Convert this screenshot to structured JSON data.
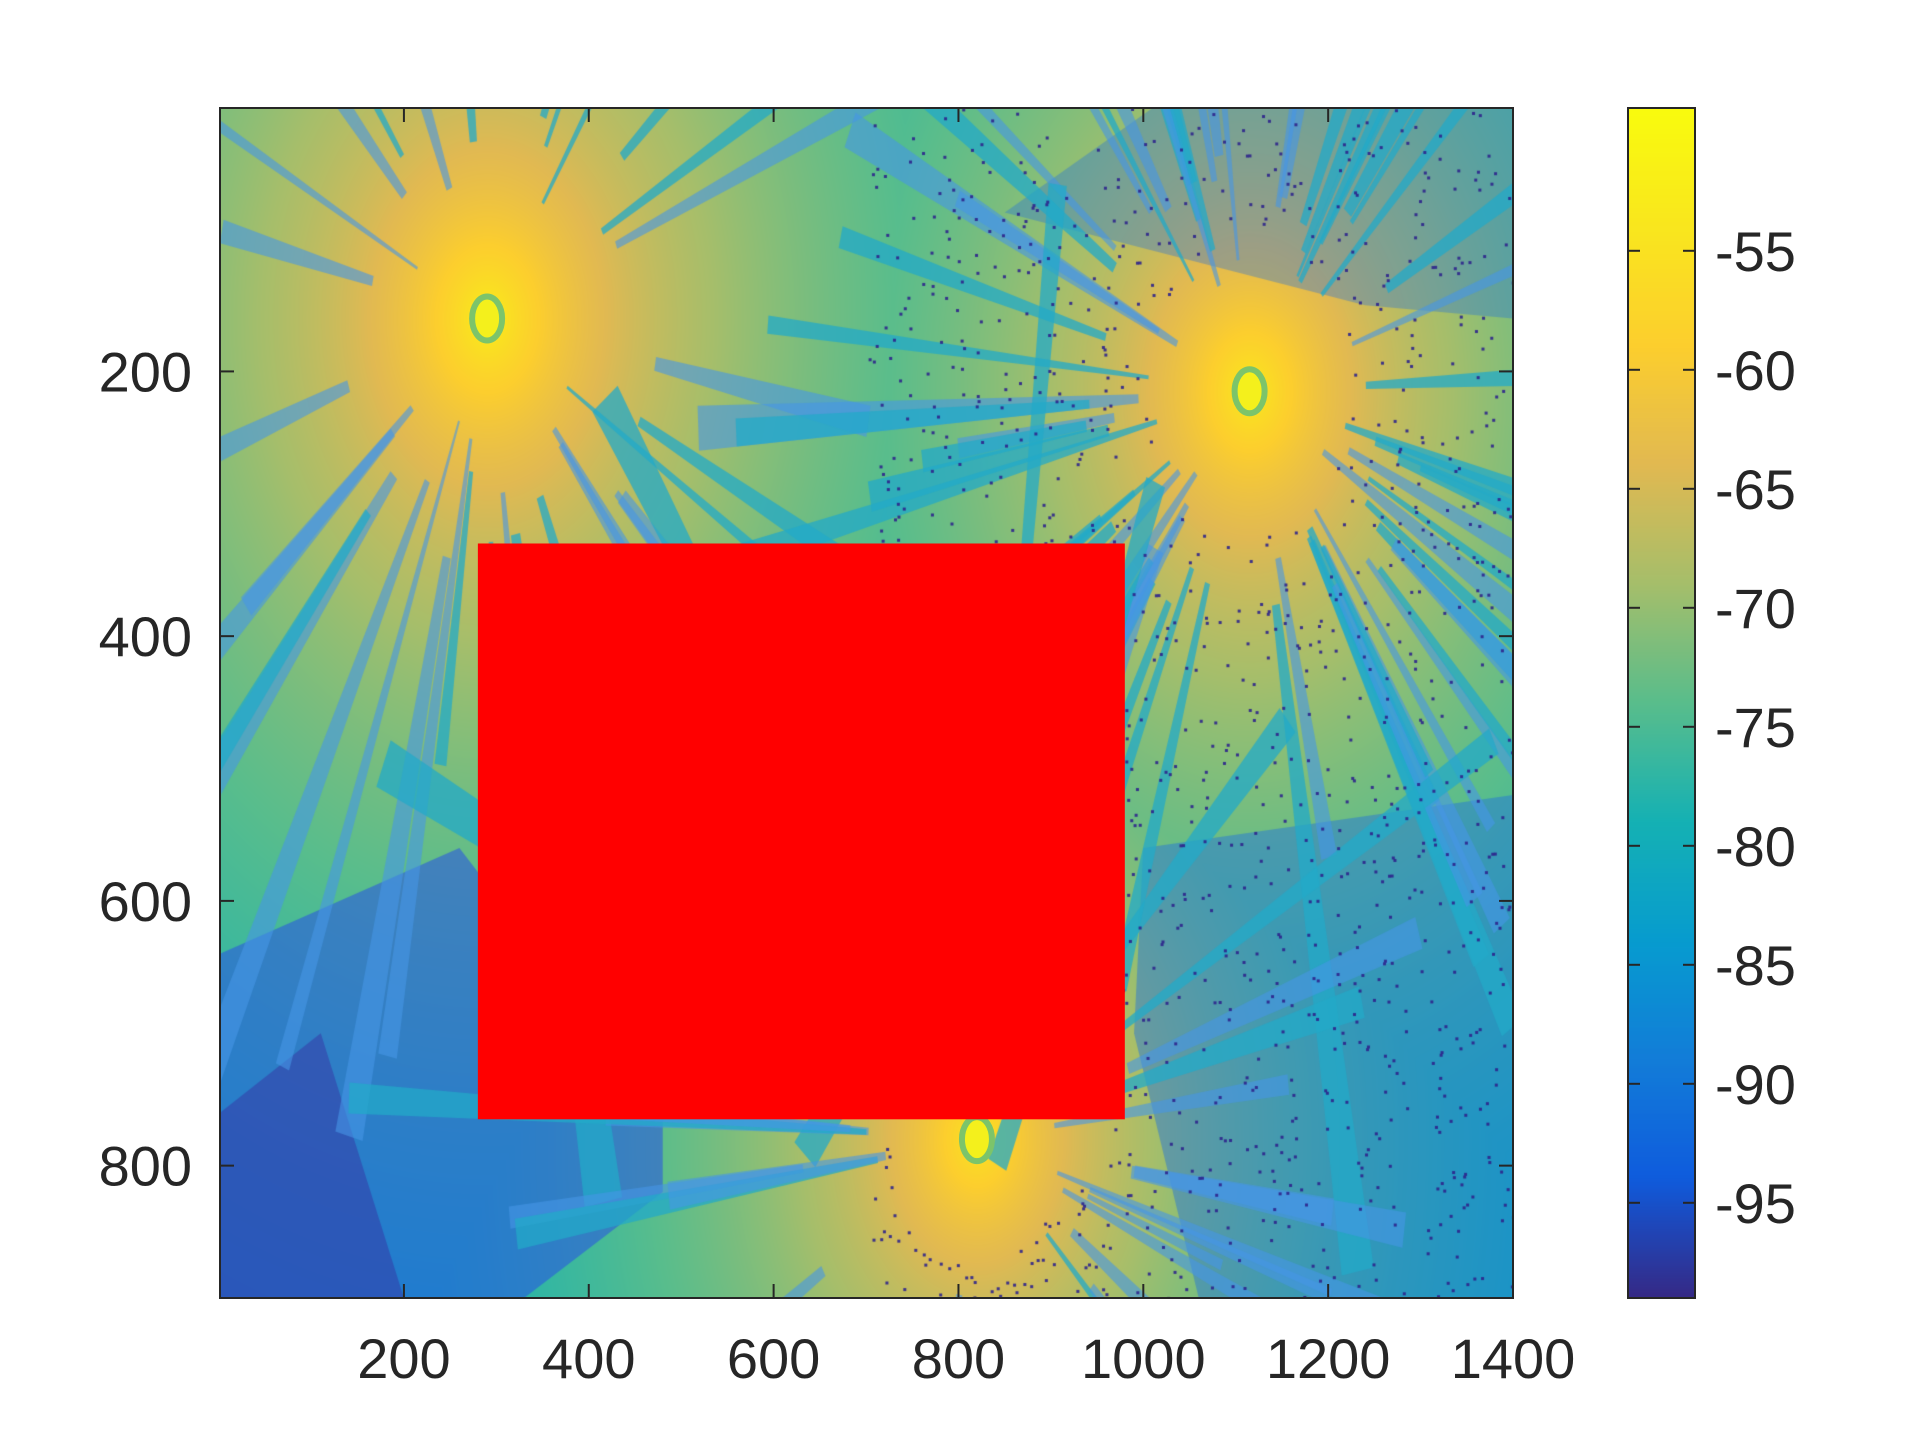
{
  "chart_data": {
    "type": "heatmap",
    "title": "",
    "xlabel": "",
    "ylabel": "",
    "xlim": [
      1,
      1400
    ],
    "ylim": [
      1,
      900
    ],
    "y_reversed": true,
    "x_ticks": [
      200,
      400,
      600,
      800,
      1000,
      1200,
      1400
    ],
    "y_ticks": [
      200,
      400,
      600,
      800
    ],
    "grid": false,
    "colormap": "parula",
    "colorbar": {
      "position": "right",
      "limits": [
        -99,
        -49
      ],
      "ticks": [
        -55,
        -60,
        -65,
        -70,
        -75,
        -80,
        -85,
        -90,
        -95
      ]
    },
    "sources": [
      {
        "x": 290,
        "y": 160,
        "peak": -52
      },
      {
        "x": 1115,
        "y": 215,
        "peak": -53
      },
      {
        "x": 820,
        "y": 780,
        "peak": -54
      }
    ],
    "masked_region": {
      "x": [
        280,
        980
      ],
      "y": [
        330,
        765
      ],
      "color": "#ff0000"
    }
  }
}
